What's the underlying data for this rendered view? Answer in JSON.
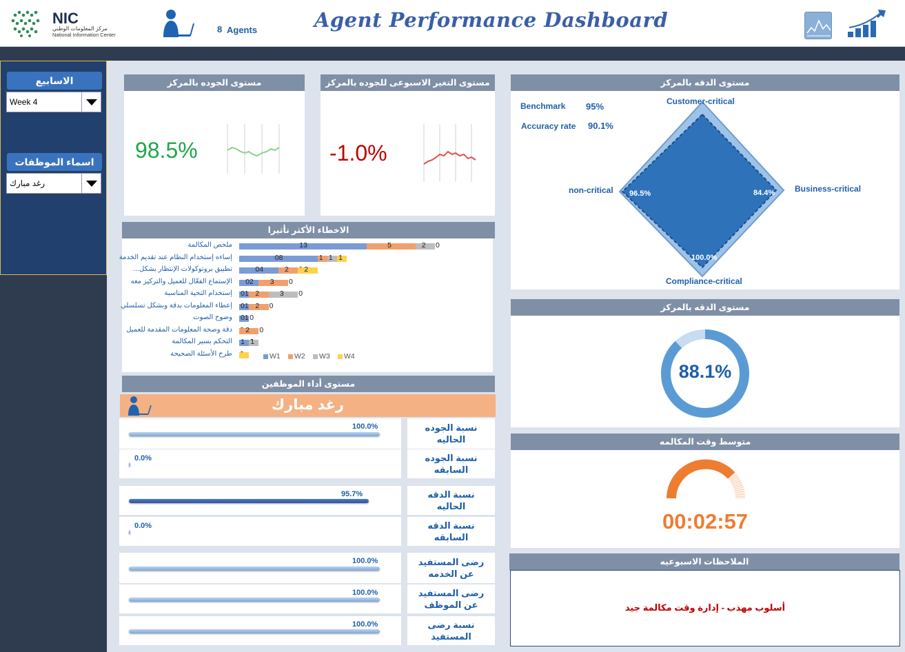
{
  "header": {
    "logo_text": "NIC",
    "logo_sub_ar": "مركز المعلومات الوطني",
    "logo_sub_en": "National Information Center",
    "agents_count": "8",
    "agents_label": "Agents",
    "title": "Agent Performance Dashboard"
  },
  "filters": {
    "week_title": "الاسابيع",
    "week_value": "Week 4",
    "employee_title": "اسماء الموظفات",
    "employee_value": "رغد مبارك"
  },
  "quality_level": {
    "title": "مستوى الجوده بالمركز",
    "value": "98.5%",
    "value_color": "#1fa64a",
    "trend_color": "#8fd18b"
  },
  "weekly_change": {
    "title": "مستوى التغير الاسبوعى للجوده بالمركز",
    "value": "-1.0%",
    "value_color": "#c00000",
    "trend_color": "#d9534f"
  },
  "accuracy_radar": {
    "title": "مستوى الدقه بالمركز",
    "benchmark_label": "Benchmark",
    "benchmark_value": "95%",
    "accuracy_label": "Accuracy rate",
    "accuracy_value": "90.1%",
    "axes": [
      "Customer-critical",
      "Business-critical",
      "Compliance-critical",
      "non-critical"
    ],
    "axis_values": [
      "84.4%",
      "100.0%",
      "96.5%"
    ]
  },
  "accuracy_donut": {
    "title": "مستوى الدقه بالمركز",
    "value": "88.1%",
    "fraction": 0.881
  },
  "call_time": {
    "title": "متوسط وقت المكالمه",
    "value": "00:02:57"
  },
  "weekly_notes": {
    "title": "الملاحظات الاسبوعيه",
    "text": "أسلوب مهذب - إدارة وقت مكالمة جيد"
  },
  "chart_data": {
    "type": "bar",
    "title": "الاخطاء الأكثر تأثيرا",
    "orientation": "horizontal-stacked",
    "categories": [
      "ملخص المكالمة",
      "إساءه إستخدام النظام عند تقديم الخدمة",
      "تطبيق بروتوكولات الإنتظار بشكل...",
      "الإستماع الفعّال للعميل والتركيز معه",
      "إستخدام التحية المناسبة",
      "إعطاء المعلومات بدقة وبشكل تسلسلي",
      "وضوح الصوت",
      "دقة وصحة المعلومات المقدمة للعميل",
      "التحكم بسير المكالمة",
      "طرح الأسئلة الصحيحة"
    ],
    "series": [
      {
        "name": "W1",
        "color": "#7b9bd6",
        "values": [
          13,
          8,
          4,
          2,
          1,
          1,
          1,
          0,
          1,
          0
        ]
      },
      {
        "name": "W2",
        "color": "#f1a06d",
        "values": [
          5,
          1,
          2,
          3,
          2,
          2,
          0,
          2,
          0,
          0
        ]
      },
      {
        "name": "W3",
        "color": "#bdbdbd",
        "values": [
          2,
          1,
          0,
          0,
          3,
          0,
          0,
          0,
          1,
          0
        ]
      },
      {
        "name": "W4",
        "color": "#ffd24a",
        "values": [
          0,
          1,
          2,
          0,
          0,
          0,
          0,
          0,
          0,
          1
        ]
      }
    ],
    "value_labels": [
      [
        "13",
        "5",
        "2",
        "0"
      ],
      [
        "08",
        "1",
        "1",
        "1"
      ],
      [
        "04",
        "2",
        "0",
        "2"
      ],
      [
        "02",
        "3",
        "0"
      ],
      [
        "01",
        "2",
        "3",
        "0"
      ],
      [
        "01",
        "2",
        "0"
      ],
      [
        "01",
        "0"
      ],
      [
        "0",
        "2",
        "0"
      ],
      [
        "1",
        "0",
        "1"
      ],
      [
        "0",
        "1"
      ]
    ],
    "legend": [
      "W1",
      "W2",
      "W3",
      "W4"
    ]
  },
  "employee_performance": {
    "title": "مستوى أداء الموظفين",
    "employee_name": "رغد مبارك",
    "metrics": [
      {
        "label": "نسبة الجوده الحاليه",
        "value": "100.0%",
        "fraction": 1.0,
        "color": "light"
      },
      {
        "label": "نسبة الجوده السابقه",
        "value": "0.0%",
        "fraction": 0.0,
        "color": "light"
      },
      {
        "label": "نسبة الدقه الحاليه",
        "value": "95.7%",
        "fraction": 0.957,
        "color": "dark"
      },
      {
        "label": "نسبة الدقه السابقه",
        "value": "0.0%",
        "fraction": 0.0,
        "color": "light"
      },
      {
        "label": "رضى المستفيد عن الخدمه",
        "value": "100.0%",
        "fraction": 1.0,
        "color": "light"
      },
      {
        "label": "رضى المستفيد عن الموظف",
        "value": "100.0%",
        "fraction": 1.0,
        "color": "light"
      },
      {
        "label": "نسبة رضى المستفيد",
        "value": "100.0%",
        "fraction": 1.0,
        "color": "light"
      }
    ]
  }
}
